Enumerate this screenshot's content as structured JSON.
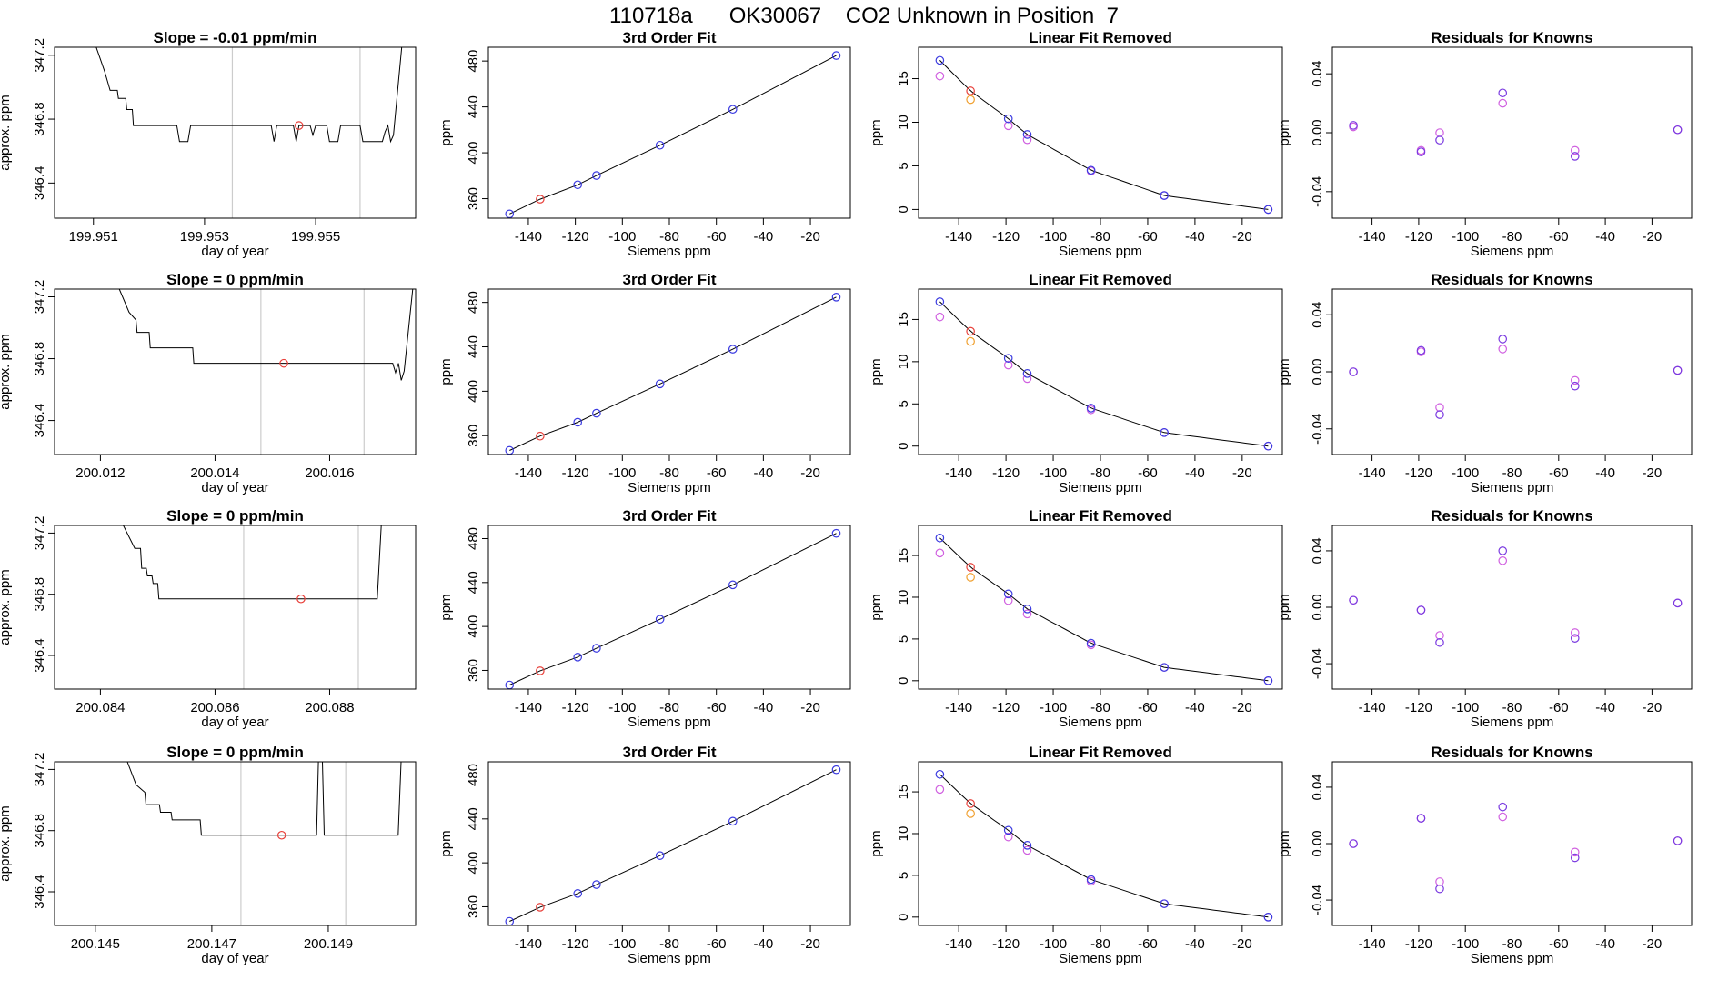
{
  "title": "110718a      OK30067    CO2 Unknown in Position  7",
  "colors": {
    "trace": "#000000",
    "gridline": "#cccccc",
    "red": "#e8403a",
    "blue": "#3a3ae0",
    "magenta": "#d060e0",
    "orange": "#f0a030",
    "purple": "#7a3ae0"
  },
  "common": {
    "xs": [
      -148,
      -135,
      -119,
      -111,
      -84,
      -53,
      -9
    ],
    "fit_xlabel": "Siemens ppm",
    "fit_ylabel": "ppm",
    "fit_xticks": [
      -140,
      -120,
      -100,
      -80,
      -60,
      -40,
      -20
    ],
    "fit_yticks": [
      360,
      400,
      440,
      480
    ],
    "lin_yticks": [
      0,
      5,
      10,
      15
    ],
    "res_yticks": [
      -0.04,
      0.0,
      0.04
    ],
    "res_ytick_labels": [
      "-0.04",
      "0.00",
      "0.04"
    ],
    "raw_xlabel": "day of year",
    "raw_ylabel": "approx. ppm",
    "raw_yticks": [
      "346.4",
      "346.8",
      "347.2"
    ],
    "fit_title": "3rd Order Fit",
    "lin_title": "Linear Fit Removed",
    "res_title": "Residuals for Knowns"
  },
  "chart_data": [
    {
      "row": 1,
      "raw": {
        "type": "line",
        "title": "Slope =  -0.01  ppm/min",
        "xlim": [
          199.9503,
          199.9568
        ],
        "ylim": [
          346.18,
          347.25
        ],
        "xticks": [
          "199.951",
          "199.953",
          "199.955"
        ],
        "gridlines_x": [
          199.9535,
          199.9558
        ],
        "trace": [
          [
            199.95105,
            347.25
          ],
          [
            199.9512,
            347.1
          ],
          [
            199.9513,
            346.98
          ],
          [
            199.95143,
            346.98
          ],
          [
            199.95145,
            346.93
          ],
          [
            199.95158,
            346.93
          ],
          [
            199.9516,
            346.86
          ],
          [
            199.9517,
            346.86
          ],
          [
            199.95172,
            346.76
          ],
          [
            199.9525,
            346.76
          ],
          [
            199.95255,
            346.66
          ],
          [
            199.9527,
            346.66
          ],
          [
            199.95275,
            346.76
          ],
          [
            199.9542,
            346.76
          ],
          [
            199.95425,
            346.66
          ],
          [
            199.9543,
            346.76
          ],
          [
            199.9546,
            346.76
          ],
          [
            199.95465,
            346.66
          ],
          [
            199.9547,
            346.76
          ],
          [
            199.9549,
            346.76
          ],
          [
            199.95495,
            346.7
          ],
          [
            199.955,
            346.76
          ],
          [
            199.9552,
            346.76
          ],
          [
            199.95525,
            346.66
          ],
          [
            199.9554,
            346.66
          ],
          [
            199.95545,
            346.76
          ],
          [
            199.9558,
            346.76
          ],
          [
            199.95585,
            346.66
          ],
          [
            199.9562,
            346.66
          ],
          [
            199.95625,
            346.72
          ],
          [
            199.9563,
            346.76
          ],
          [
            199.95635,
            346.66
          ],
          [
            199.9564,
            346.7
          ],
          [
            199.95655,
            347.25
          ]
        ],
        "marker": [
          199.9547,
          346.76
        ]
      },
      "fit": {
        "type": "scatter",
        "xlim": [
          -157,
          -3
        ],
        "ylim": [
          343,
          492
        ],
        "values": [
          346.7,
          359.6,
          372.1,
          380.2,
          406.6,
          437.9,
          484.8
        ]
      },
      "lin": {
        "type": "scatter",
        "xlim": [
          -157,
          -3
        ],
        "ylim": [
          -1,
          18.6
        ],
        "blue": [
          17.1,
          13.6,
          10.4,
          8.6,
          4.5,
          1.6,
          0.0
        ],
        "magenta": [
          15.3,
          12.6,
          9.6,
          8.0,
          4.4,
          1.6,
          0.0
        ],
        "orange_idx": 1
      },
      "res": {
        "type": "scatter",
        "xlim": [
          -157,
          -3
        ],
        "ylim": [
          -0.058,
          0.058
        ],
        "blue": [
          0.005,
          null,
          -0.013,
          -0.005,
          0.027,
          -0.016,
          0.002
        ],
        "magenta": [
          0.004,
          null,
          -0.012,
          0.0,
          0.02,
          -0.012,
          0.002
        ]
      }
    },
    {
      "row": 2,
      "raw": {
        "type": "line",
        "title": "Slope =  0  ppm/min",
        "xlim": [
          200.0112,
          200.0175
        ],
        "ylim": [
          346.18,
          347.25
        ],
        "xticks": [
          "200.012",
          "200.014",
          "200.016"
        ],
        "gridlines_x": [
          200.0148,
          200.0166
        ],
        "trace": [
          [
            200.01233,
            347.25
          ],
          [
            200.0125,
            347.1
          ],
          [
            200.01262,
            347.05
          ],
          [
            200.01264,
            346.97
          ],
          [
            200.01285,
            346.97
          ],
          [
            200.01287,
            346.87
          ],
          [
            200.01361,
            346.87
          ],
          [
            200.01363,
            346.77
          ],
          [
            200.0171,
            346.77
          ],
          [
            200.01715,
            346.71
          ],
          [
            200.0172,
            346.77
          ],
          [
            200.01725,
            346.66
          ],
          [
            200.0173,
            346.72
          ],
          [
            200.01745,
            347.25
          ]
        ],
        "marker": [
          200.0152,
          346.77
        ]
      },
      "fit": {
        "type": "scatter",
        "xlim": [
          -157,
          -3
        ],
        "ylim": [
          343,
          492
        ],
        "values": [
          346.7,
          359.6,
          372.1,
          380.2,
          406.6,
          437.9,
          484.8
        ]
      },
      "lin": {
        "type": "scatter",
        "xlim": [
          -157,
          -3
        ],
        "ylim": [
          -1,
          18.6
        ],
        "blue": [
          17.1,
          13.6,
          10.4,
          8.6,
          4.5,
          1.6,
          0.0
        ],
        "magenta": [
          15.3,
          12.4,
          9.6,
          8.0,
          4.3,
          1.6,
          0.0
        ],
        "orange_idx": 1
      },
      "res": {
        "type": "scatter",
        "xlim": [
          -157,
          -3
        ],
        "ylim": [
          -0.058,
          0.058
        ],
        "blue": [
          0.0,
          null,
          0.015,
          -0.03,
          0.023,
          -0.01,
          0.001
        ],
        "magenta": [
          0.0,
          null,
          0.014,
          -0.025,
          0.016,
          -0.006,
          0.001
        ]
      }
    },
    {
      "row": 3,
      "raw": {
        "type": "line",
        "title": "Slope =  0  ppm/min",
        "xlim": [
          200.0832,
          200.0895
        ],
        "ylim": [
          346.18,
          347.25
        ],
        "xticks": [
          "200.084",
          "200.086",
          "200.088"
        ],
        "gridlines_x": [
          200.0865,
          200.0885
        ],
        "trace": [
          [
            200.0844,
            347.25
          ],
          [
            200.0846,
            347.1
          ],
          [
            200.0847,
            347.1
          ],
          [
            200.08472,
            346.97
          ],
          [
            200.0848,
            346.97
          ],
          [
            200.08482,
            346.92
          ],
          [
            200.0849,
            346.92
          ],
          [
            200.08492,
            346.87
          ],
          [
            200.085,
            346.87
          ],
          [
            200.08502,
            346.77
          ],
          [
            200.08883,
            346.77
          ],
          [
            200.0889,
            347.25
          ]
        ],
        "marker": [
          200.0875,
          346.77
        ]
      },
      "fit": {
        "type": "scatter",
        "xlim": [
          -157,
          -3
        ],
        "ylim": [
          343,
          492
        ],
        "values": [
          346.7,
          359.6,
          372.1,
          380.2,
          406.6,
          437.9,
          484.8
        ]
      },
      "lin": {
        "type": "scatter",
        "xlim": [
          -157,
          -3
        ],
        "ylim": [
          -1,
          18.6
        ],
        "blue": [
          17.1,
          13.6,
          10.4,
          8.6,
          4.5,
          1.6,
          0.0
        ],
        "magenta": [
          15.3,
          12.4,
          9.6,
          8.0,
          4.3,
          1.6,
          0.0
        ],
        "orange_idx": 1
      },
      "res": {
        "type": "scatter",
        "xlim": [
          -157,
          -3
        ],
        "ylim": [
          -0.058,
          0.058
        ],
        "blue": [
          0.005,
          null,
          -0.002,
          -0.025,
          0.04,
          -0.022,
          0.003
        ],
        "magenta": [
          0.005,
          null,
          -0.002,
          -0.02,
          0.033,
          -0.018,
          0.003
        ]
      }
    },
    {
      "row": 4,
      "raw": {
        "type": "line",
        "title": "Slope =  0  ppm/min",
        "xlim": [
          200.1443,
          200.1505
        ],
        "ylim": [
          346.18,
          347.25
        ],
        "xticks": [
          "200.145",
          "200.147",
          "200.149"
        ],
        "gridlines_x": [
          200.1475,
          200.1493
        ],
        "trace": [
          [
            200.14555,
            347.25
          ],
          [
            200.1457,
            347.1
          ],
          [
            200.14585,
            347.05
          ],
          [
            200.14587,
            346.97
          ],
          [
            200.1461,
            346.97
          ],
          [
            200.14612,
            346.92
          ],
          [
            200.1463,
            346.92
          ],
          [
            200.14632,
            346.87
          ],
          [
            200.1468,
            346.87
          ],
          [
            200.14682,
            346.77
          ],
          [
            200.1488,
            346.77
          ],
          [
            200.14883,
            347.25
          ],
          [
            200.1489,
            347.25
          ],
          [
            200.14893,
            346.77
          ],
          [
            200.1502,
            346.77
          ],
          [
            200.15025,
            347.25
          ]
        ],
        "marker": [
          200.1482,
          346.77
        ]
      },
      "fit": {
        "type": "scatter",
        "xlim": [
          -157,
          -3
        ],
        "ylim": [
          343,
          492
        ],
        "values": [
          346.7,
          359.6,
          372.1,
          380.2,
          406.6,
          437.9,
          484.8
        ]
      },
      "lin": {
        "type": "scatter",
        "xlim": [
          -157,
          -3
        ],
        "ylim": [
          -1,
          18.6
        ],
        "blue": [
          17.1,
          13.6,
          10.4,
          8.6,
          4.5,
          1.6,
          0.0
        ],
        "magenta": [
          15.3,
          12.4,
          9.6,
          8.0,
          4.3,
          1.6,
          0.0
        ],
        "orange_idx": 1
      },
      "res": {
        "type": "scatter",
        "xlim": [
          -157,
          -3
        ],
        "ylim": [
          -0.058,
          0.058
        ],
        "blue": [
          0.0,
          null,
          0.018,
          -0.032,
          0.026,
          -0.01,
          0.002
        ],
        "magenta": [
          0.0,
          null,
          0.018,
          -0.027,
          0.019,
          -0.006,
          0.002
        ]
      }
    }
  ]
}
